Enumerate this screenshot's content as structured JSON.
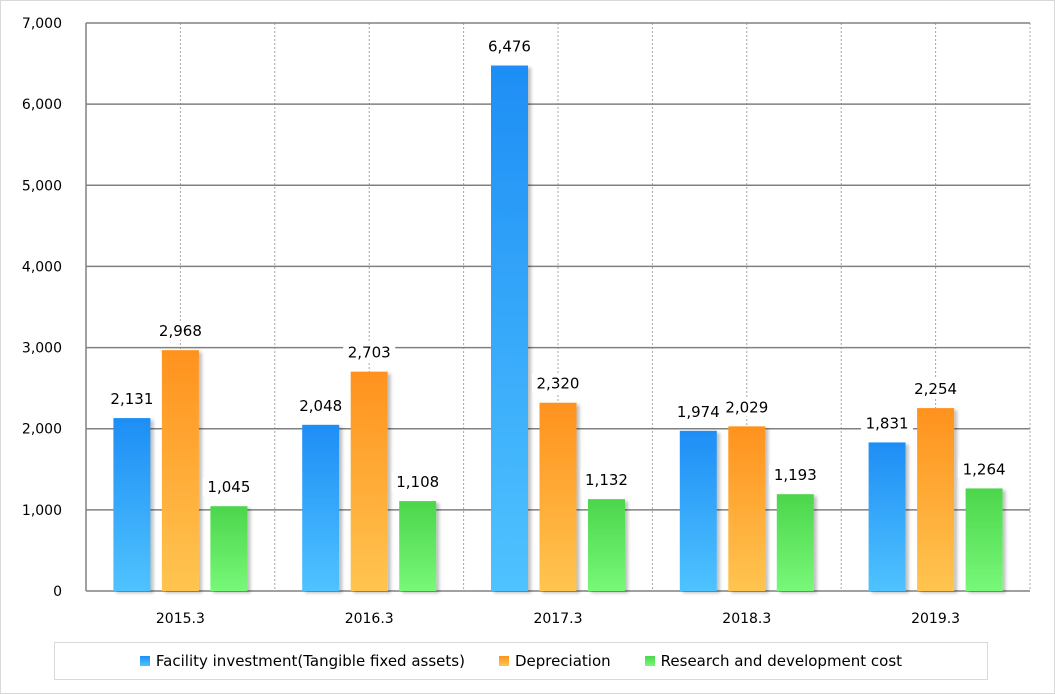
{
  "chart_data": {
    "type": "bar",
    "title": "",
    "xlabel": "",
    "ylabel": "",
    "categories": [
      "2015.3",
      "2016.3",
      "2017.3",
      "2018.3",
      "2019.3"
    ],
    "series": [
      {
        "name": "Facility investment(Tangible fixed assets)",
        "values": [
          2131,
          2048,
          6476,
          1974,
          1831
        ],
        "color_top": "#1E8EF5",
        "color_bottom": "#4FC3FF",
        "labels": [
          "2,131",
          "2,048",
          "6,476",
          "1,974",
          "1,831"
        ]
      },
      {
        "name": "Depreciation",
        "values": [
          2968,
          2703,
          2320,
          2029,
          2254
        ],
        "color_top": "#FF921E",
        "color_bottom": "#FFC550",
        "labels": [
          "2,968",
          "2,703",
          "2,320",
          "2,029",
          "2,254"
        ]
      },
      {
        "name": "Research and development cost",
        "values": [
          1045,
          1108,
          1132,
          1193,
          1264
        ],
        "color_top": "#4CD64C",
        "color_bottom": "#78F878",
        "labels": [
          "1,045",
          "1,108",
          "1,132",
          "1,193",
          "1,264"
        ]
      }
    ],
    "ylim": [
      0,
      7000
    ],
    "yticks": [
      0,
      1000,
      2000,
      3000,
      4000,
      5000,
      6000,
      7000
    ],
    "ytick_labels": [
      "0",
      "1,000",
      "2,000",
      "3,000",
      "4,000",
      "5,000",
      "6,000",
      "7,000"
    ],
    "grid": {
      "horizontal": "solid",
      "vertical": "dotted"
    },
    "legend_position": "bottom"
  }
}
